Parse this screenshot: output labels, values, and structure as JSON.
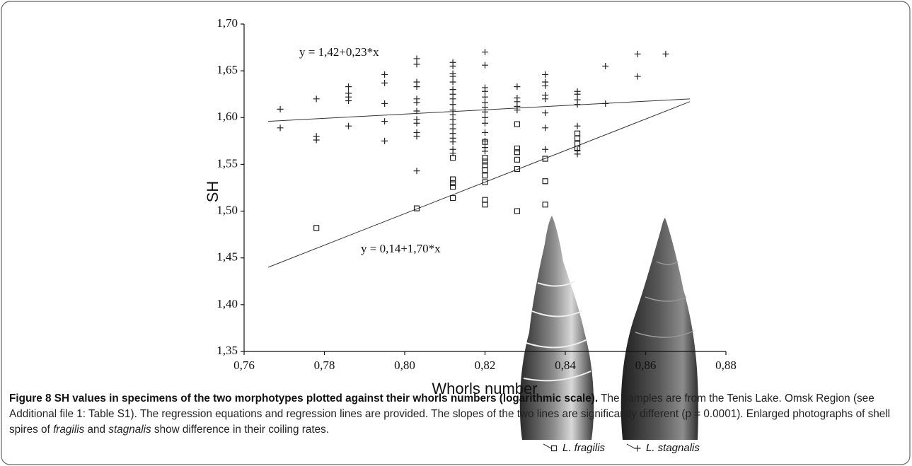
{
  "chart_data": {
    "type": "scatter",
    "x_label": "Whorls number",
    "y_label": "SH",
    "xlim": [
      0.76,
      0.88
    ],
    "xticks": [
      {
        "value": 0.76,
        "label": "0,76"
      },
      {
        "value": 0.78,
        "label": "0,78"
      },
      {
        "value": 0.8,
        "label": "0,80"
      },
      {
        "value": 0.82,
        "label": "0,82"
      },
      {
        "value": 0.84,
        "label": "0,84"
      },
      {
        "value": 0.86,
        "label": "0,86"
      },
      {
        "value": 0.88,
        "label": "0,88"
      }
    ],
    "ylim": [
      1.35,
      1.7
    ],
    "yticks": [
      {
        "value": 1.35,
        "label": "1,35"
      },
      {
        "value": 1.4,
        "label": "1,40"
      },
      {
        "value": 1.45,
        "label": "1,45"
      },
      {
        "value": 1.5,
        "label": "1,50"
      },
      {
        "value": 1.55,
        "label": "1,55"
      },
      {
        "value": 1.6,
        "label": "1,60"
      },
      {
        "value": 1.65,
        "label": "1,65"
      },
      {
        "value": 1.7,
        "label": "1,70"
      }
    ],
    "grid": false,
    "series": [
      {
        "name": "L. fragilis",
        "marker": "square",
        "color": "#222222",
        "x": [
          0.778,
          0.803,
          0.812,
          0.812,
          0.812,
          0.812,
          0.812,
          0.82,
          0.82,
          0.82,
          0.82,
          0.82,
          0.82,
          0.82,
          0.82,
          0.82,
          0.828,
          0.828,
          0.828,
          0.828,
          0.828,
          0.828,
          0.835,
          0.835,
          0.835,
          0.843,
          0.843,
          0.843,
          0.843
        ],
        "values": [
          1.482,
          1.503,
          1.557,
          1.534,
          1.53,
          1.526,
          1.514,
          1.574,
          1.557,
          1.553,
          1.549,
          1.544,
          1.538,
          1.531,
          1.512,
          1.507,
          1.593,
          1.567,
          1.563,
          1.555,
          1.545,
          1.5,
          1.556,
          1.532,
          1.507,
          1.583,
          1.578,
          1.572,
          1.567
        ]
      },
      {
        "name": "L. stagnalis",
        "marker": "plus",
        "color": "#222222",
        "x": [
          0.769,
          0.769,
          0.778,
          0.778,
          0.778,
          0.786,
          0.786,
          0.786,
          0.786,
          0.786,
          0.795,
          0.795,
          0.795,
          0.795,
          0.795,
          0.803,
          0.803,
          0.803,
          0.803,
          0.803,
          0.803,
          0.803,
          0.803,
          0.803,
          0.803,
          0.803,
          0.803,
          0.812,
          0.812,
          0.812,
          0.812,
          0.812,
          0.812,
          0.812,
          0.812,
          0.812,
          0.812,
          0.812,
          0.812,
          0.812,
          0.812,
          0.812,
          0.812,
          0.812,
          0.812,
          0.812,
          0.82,
          0.82,
          0.82,
          0.82,
          0.82,
          0.82,
          0.82,
          0.82,
          0.82,
          0.82,
          0.82,
          0.82,
          0.82,
          0.82,
          0.828,
          0.828,
          0.828,
          0.828,
          0.828,
          0.835,
          0.835,
          0.835,
          0.835,
          0.835,
          0.835,
          0.835,
          0.835,
          0.843,
          0.843,
          0.843,
          0.843,
          0.843,
          0.843,
          0.843,
          0.85,
          0.85,
          0.858,
          0.858,
          0.865
        ],
        "values": [
          1.609,
          1.589,
          1.62,
          1.58,
          1.576,
          1.633,
          1.626,
          1.622,
          1.618,
          1.591,
          1.646,
          1.637,
          1.615,
          1.596,
          1.575,
          1.663,
          1.657,
          1.638,
          1.633,
          1.62,
          1.616,
          1.607,
          1.598,
          1.594,
          1.584,
          1.58,
          1.543,
          1.659,
          1.655,
          1.647,
          1.644,
          1.638,
          1.63,
          1.625,
          1.62,
          1.614,
          1.608,
          1.603,
          1.598,
          1.593,
          1.588,
          1.583,
          1.578,
          1.574,
          1.566,
          1.562,
          1.67,
          1.656,
          1.632,
          1.628,
          1.622,
          1.616,
          1.611,
          1.606,
          1.6,
          1.594,
          1.584,
          1.575,
          1.568,
          1.564,
          1.633,
          1.621,
          1.617,
          1.612,
          1.608,
          1.646,
          1.638,
          1.634,
          1.624,
          1.62,
          1.605,
          1.589,
          1.566,
          1.628,
          1.625,
          1.619,
          1.614,
          1.591,
          1.565,
          1.561,
          1.655,
          1.615,
          1.668,
          1.644,
          1.668
        ]
      }
    ],
    "fit_lines": [
      {
        "label": "y = 1,42+0,23*x",
        "x": [
          0.766,
          0.871
        ],
        "values": [
          1.596,
          1.62
        ]
      },
      {
        "label": "y = 0,14+1,70*x",
        "x": [
          0.766,
          0.871
        ],
        "values": [
          1.44,
          1.617
        ]
      }
    ]
  },
  "caption": {
    "label": "Figure 8",
    "title": "SH values in specimens of the two morphotypes plotted against their whorls numbers (logarithmic scale).",
    "body": [
      "The samples are from the Tenis Lake. Omsk Region (see Additional file 1: Table S1). The regression equations and regression lines are provided. The slopes of the two lines are significantly different (p = 0.0001). Enlarged photographs of shell spires of ",
      "fragilis",
      " and ",
      "stagnalis",
      " show difference in their coiling rates."
    ]
  }
}
